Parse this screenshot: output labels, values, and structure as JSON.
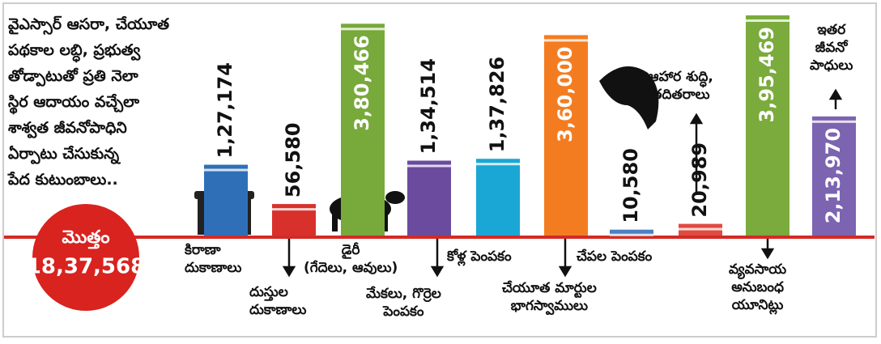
{
  "chart_data": {
    "type": "bar",
    "title": "వైఎస్సార్ ఆసరా, చేయూత\nపథకాల లబ్ధి, ప్రభుత్వ\nతోడ్పాటుతో ప్రతి నెలా\nస్థిర ఆదాయం వచ్చేలా\nశాశ్వత జీవనోపాధిని\nఏర్పాటు చేసుకున్న\nపేద కుటుంబాలు..",
    "categories": [
      "కిరాణా\nదుకాణాలు",
      "దుస్తుల\nదుకాణాలు",
      "డైరీ\n(గేదెలు, ఆవులు)",
      "మేకలు, గొర్రెల\nపెంపకం",
      "కోళ్ల పెంపకం",
      "చేయూత మార్టుల\nభాగస్వాములు",
      "చేపల పెంపకం",
      "ఆహార శుద్ధి,\nతదితరాలు",
      "వ్యవసాయ\nఅనుబంధ\nయూనిట్లు",
      "ఇతర\nజీవనో\nపాధులు"
    ],
    "values": [
      127174,
      56580,
      380466,
      134514,
      137826,
      360000,
      10580,
      20989,
      395469,
      213970
    ],
    "value_labels": [
      "1,27,174",
      "56,580",
      "3,80,466",
      "1,34,514",
      "1,37,826",
      "3,60,000",
      "10,580",
      "20,989",
      "3,95,469",
      "2,13,970"
    ],
    "colors": [
      "#2f6fb8",
      "#d8312c",
      "#78a93b",
      "#6b4b9e",
      "#1ba7d5",
      "#f47c20",
      "#4d7fc2",
      "#e14a41",
      "#7aab3c",
      "#7c64b1"
    ],
    "total": {
      "label": "మొత్తం",
      "value": 1837568,
      "value_label": "18,37,568"
    }
  }
}
